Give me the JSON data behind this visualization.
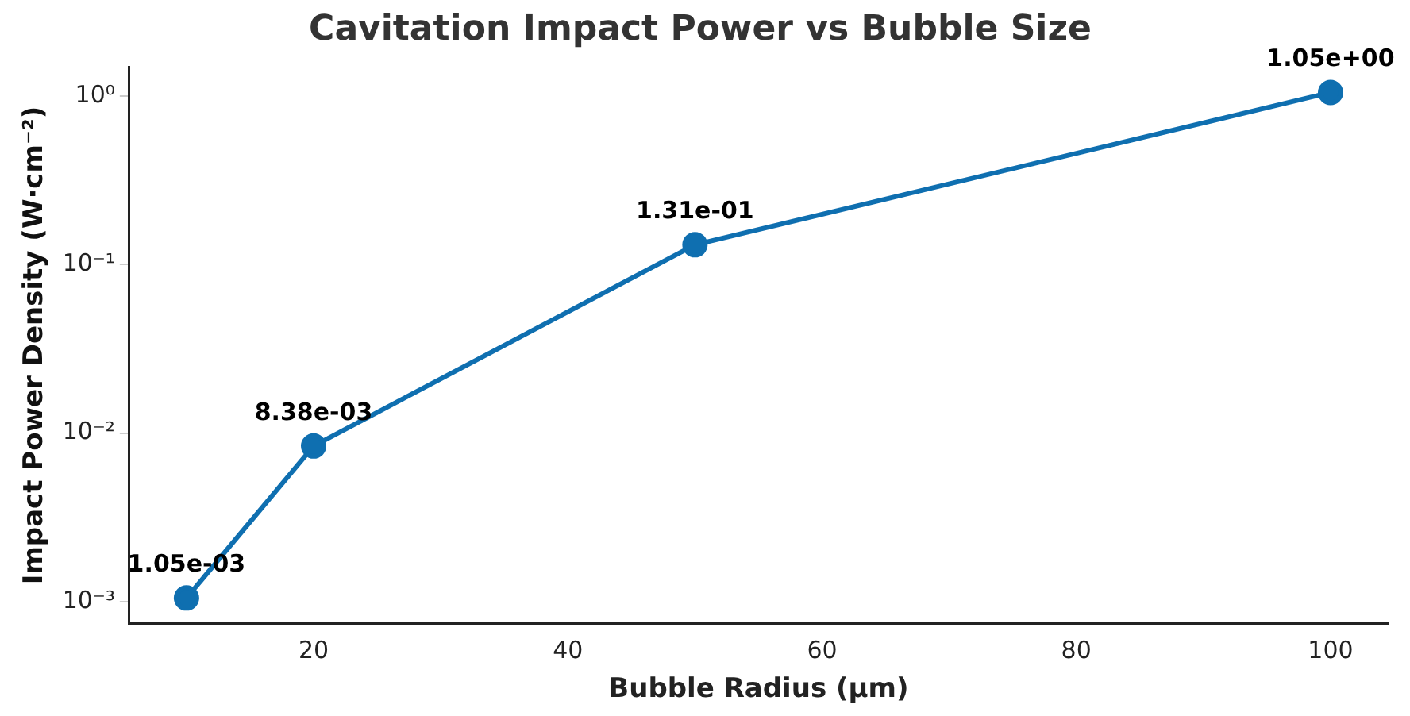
{
  "chart_data": {
    "type": "line",
    "title": "Cavitation Impact Power vs Bubble Size",
    "xlabel": "Bubble Radius (µm)",
    "ylabel": "Impact Power Density (W·cm⁻²)",
    "x": [
      10,
      20,
      50,
      100
    ],
    "series": [
      {
        "color": "#0f6fb0",
        "values": [
          0.00105,
          0.00838,
          0.131,
          1.05
        ],
        "value_labels": [
          "1.05e-03",
          "8.38e-03",
          "1.31e-01",
          "1.05e+00"
        ]
      }
    ],
    "xlim": [
      5.5,
      104.5
    ],
    "xticks": [
      20,
      40,
      60,
      80,
      100
    ],
    "ylim": [
      0.000743,
      1.48
    ],
    "yticks": [
      {
        "value": 0.001,
        "label": "10⁻³"
      },
      {
        "value": 0.01,
        "label": "10⁻²"
      },
      {
        "value": 0.1,
        "label": "10⁻¹"
      },
      {
        "value": 1,
        "label": "10⁰"
      }
    ],
    "log": "y",
    "grid": false,
    "legend": false,
    "marker": "circle",
    "line_style": "solid"
  }
}
